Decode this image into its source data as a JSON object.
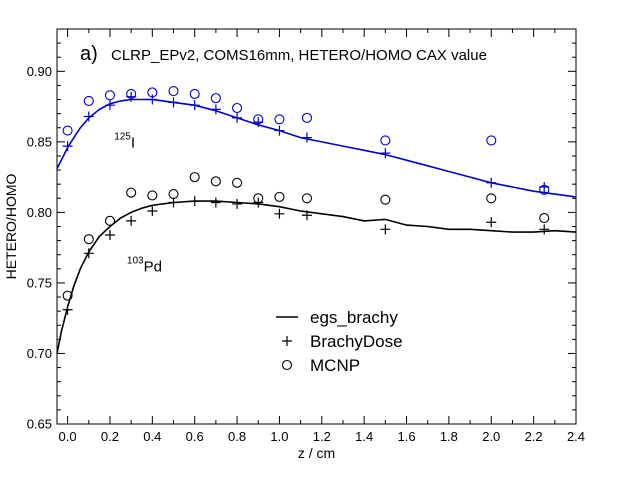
{
  "chart_data": {
    "type": "line",
    "panel_label": "a)",
    "title": "CLRP_EPv2, COMS16mm, HETERO/HOMO CAX value",
    "xlabel": "z / cm",
    "ylabel": "HETERO/HOMO",
    "xlim": [
      -0.05,
      2.4
    ],
    "ylim": [
      0.65,
      0.93
    ],
    "x_ticks": [
      0.0,
      0.2,
      0.4,
      0.6,
      0.8,
      1.0,
      1.2,
      1.4,
      1.6,
      1.8,
      2.0,
      2.2,
      2.4
    ],
    "x_tick_labels": [
      "0.0",
      "0.2",
      "0.4",
      "0.6",
      "0.8",
      "1.0",
      "1.2",
      "1.4",
      "1.6",
      "1.8",
      "2.0",
      "2.2",
      "2.4"
    ],
    "y_ticks": [
      0.65,
      0.7,
      0.75,
      0.8,
      0.85,
      0.9
    ],
    "y_tick_labels": [
      "0.65",
      "0.70",
      "0.75",
      "0.80",
      "0.85",
      "0.90"
    ],
    "legend": {
      "position": "bottom-center",
      "entries": [
        {
          "label": "egs_brachy",
          "marker": "line"
        },
        {
          "label": "BrachyDose",
          "marker": "plus"
        },
        {
          "label": "MCNP",
          "marker": "circle"
        }
      ]
    },
    "annotations": [
      {
        "isotope": "I",
        "mass": "125",
        "color": "#0000cc",
        "x": 0.22,
        "y": 0.846
      },
      {
        "isotope": "Pd",
        "mass": "103",
        "color": "#000000",
        "x": 0.28,
        "y": 0.758
      }
    ],
    "series": [
      {
        "name": "I-125 egs_brachy",
        "color": "#0000cc",
        "marker": "line",
        "x": [
          -0.05,
          -0.02,
          0.0,
          0.03,
          0.06,
          0.1,
          0.15,
          0.2,
          0.25,
          0.3,
          0.35,
          0.4,
          0.45,
          0.5,
          0.55,
          0.6,
          0.7,
          0.8,
          0.9,
          1.0,
          1.1,
          1.2,
          1.3,
          1.4,
          1.5,
          1.6,
          1.7,
          1.8,
          1.9,
          2.0,
          2.1,
          2.2,
          2.3,
          2.4
        ],
        "y": [
          0.831,
          0.84,
          0.846,
          0.853,
          0.86,
          0.867,
          0.873,
          0.877,
          0.879,
          0.88,
          0.88,
          0.88,
          0.879,
          0.878,
          0.877,
          0.876,
          0.872,
          0.867,
          0.862,
          0.858,
          0.853,
          0.85,
          0.847,
          0.844,
          0.841,
          0.837,
          0.833,
          0.829,
          0.825,
          0.821,
          0.818,
          0.815,
          0.813,
          0.811
        ]
      },
      {
        "name": "I-125 BrachyDose",
        "color": "#0000cc",
        "marker": "plus",
        "x": [
          0.0,
          0.1,
          0.2,
          0.3,
          0.4,
          0.5,
          0.6,
          0.7,
          0.8,
          0.9,
          1.0,
          1.13,
          1.5,
          2.0,
          2.25
        ],
        "y": [
          0.847,
          0.868,
          0.876,
          0.882,
          0.88,
          0.878,
          0.876,
          0.873,
          0.867,
          0.864,
          0.858,
          0.853,
          0.842,
          0.821,
          0.818
        ]
      },
      {
        "name": "I-125 MCNP",
        "color": "#0000cc",
        "marker": "circle",
        "x": [
          0.0,
          0.1,
          0.2,
          0.3,
          0.4,
          0.5,
          0.6,
          0.7,
          0.8,
          0.9,
          1.0,
          1.13,
          1.5,
          2.0,
          2.25
        ],
        "y": [
          0.858,
          0.879,
          0.883,
          0.884,
          0.885,
          0.886,
          0.884,
          0.881,
          0.874,
          0.866,
          0.866,
          0.867,
          0.851,
          0.851,
          0.816
        ]
      },
      {
        "name": "Pd-103 egs_brachy",
        "color": "#000000",
        "marker": "line",
        "x": [
          -0.05,
          -0.03,
          0.0,
          0.03,
          0.06,
          0.1,
          0.15,
          0.2,
          0.25,
          0.3,
          0.35,
          0.4,
          0.5,
          0.6,
          0.7,
          0.8,
          0.9,
          1.0,
          1.1,
          1.2,
          1.3,
          1.4,
          1.5,
          1.6,
          1.7,
          1.8,
          1.9,
          2.0,
          2.1,
          2.2,
          2.3,
          2.4
        ],
        "y": [
          0.7,
          0.715,
          0.733,
          0.748,
          0.76,
          0.772,
          0.783,
          0.79,
          0.796,
          0.8,
          0.803,
          0.805,
          0.807,
          0.808,
          0.808,
          0.807,
          0.806,
          0.804,
          0.801,
          0.799,
          0.797,
          0.794,
          0.795,
          0.791,
          0.79,
          0.788,
          0.788,
          0.787,
          0.786,
          0.786,
          0.787,
          0.786
        ]
      },
      {
        "name": "Pd-103 BrachyDose",
        "color": "#000000",
        "marker": "plus",
        "x": [
          0.0,
          0.1,
          0.2,
          0.3,
          0.4,
          0.5,
          0.6,
          0.7,
          0.8,
          0.9,
          1.0,
          1.13,
          1.5,
          2.0,
          2.25
        ],
        "y": [
          0.731,
          0.771,
          0.784,
          0.794,
          0.801,
          0.807,
          0.808,
          0.807,
          0.806,
          0.807,
          0.799,
          0.798,
          0.788,
          0.793,
          0.788
        ]
      },
      {
        "name": "Pd-103 MCNP",
        "color": "#000000",
        "marker": "circle",
        "x": [
          0.0,
          0.1,
          0.2,
          0.3,
          0.4,
          0.5,
          0.6,
          0.7,
          0.8,
          0.9,
          1.0,
          1.13,
          1.5,
          2.0,
          2.25
        ],
        "y": [
          0.741,
          0.781,
          0.794,
          0.814,
          0.812,
          0.813,
          0.825,
          0.822,
          0.821,
          0.81,
          0.811,
          0.81,
          0.809,
          0.81,
          0.796
        ]
      }
    ]
  }
}
